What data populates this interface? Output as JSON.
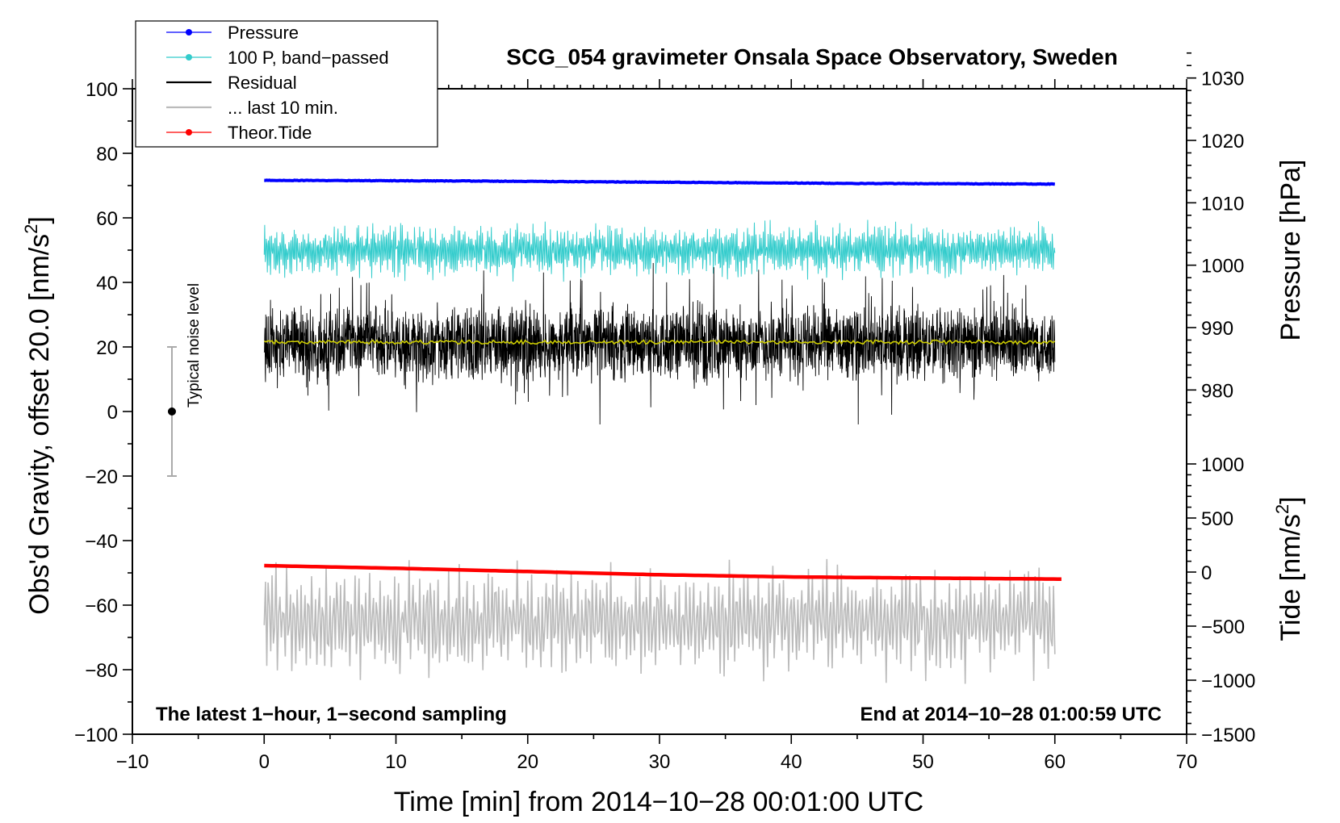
{
  "chart_data": {
    "type": "line",
    "title": "SCG_054 gravimeter Onsala Space Observatory, Sweden",
    "xlabel": "Time [min] from 2014−10−28 00:01:00 UTC",
    "ylabel": "Obs'd Gravity, offset 20.0 [nm/s",
    "ylabel_sup": "2",
    "ylabel_end": "]",
    "y2label": "Pressure [hPa]",
    "y3label": "Tide [nm/s",
    "y3label_sup": "2",
    "y3label_end": "]",
    "xlim": [
      -10,
      70
    ],
    "ylim": [
      -100,
      100
    ],
    "xticks": [
      -10,
      0,
      10,
      20,
      30,
      40,
      50,
      60,
      70
    ],
    "yticks": [
      -100,
      -80,
      -60,
      -40,
      -20,
      0,
      20,
      40,
      60,
      80,
      100
    ],
    "pressure_axis": {
      "range": [
        975,
        1035
      ],
      "ticks": [
        980,
        990,
        1000,
        1010,
        1020,
        1030
      ]
    },
    "tide_axis": {
      "range": [
        -1500,
        1000
      ],
      "ticks": [
        -1500,
        -1000,
        -500,
        0,
        500,
        1000
      ]
    },
    "xtick_labels": [
      "−10",
      "0",
      "10",
      "20",
      "30",
      "40",
      "50",
      "60",
      "70"
    ],
    "ytick_labels": [
      "−100",
      "−80",
      "−60",
      "−40",
      "−20",
      "0",
      "20",
      "40",
      "60",
      "80",
      "100"
    ],
    "pressure_tick_labels": [
      "980",
      "990",
      "1000",
      "1010",
      "1020",
      "1030"
    ],
    "tide_tick_labels": [
      "−1500",
      "−1000",
      "−500",
      "0",
      "500",
      "1000"
    ],
    "legend": {
      "placement": "top-left",
      "entries": [
        {
          "label": "Pressure",
          "color": "#0000ff",
          "marker": true
        },
        {
          "label": "100 P, band−passed",
          "color": "#33cccc",
          "marker": true
        },
        {
          "label": "Residual",
          "color": "#000000",
          "marker": false
        },
        {
          "label": "... last 10 min.",
          "color": "#bbbbbb",
          "marker": false
        },
        {
          "label": "Theor.Tide",
          "color": "#ff0000",
          "marker": true
        }
      ]
    },
    "annotations": {
      "bottom_left": "The latest 1−hour, 1−second sampling",
      "bottom_right": "End at 2014−10−28 01:00:59 UTC",
      "noise_label": "Typical noise level"
    },
    "noise_bar": {
      "x": -7,
      "center": 0,
      "low": -20,
      "high": 20
    },
    "series": [
      {
        "name": "Pressure",
        "axis": "pressure",
        "color": "#0000ff",
        "x": [
          0,
          15,
          30,
          45,
          60
        ],
        "values": [
          1013.6,
          1013.5,
          1013.3,
          1013.1,
          1013.0
        ]
      },
      {
        "name": "100 P, band-passed",
        "axis": "gravity",
        "color": "#33cccc",
        "x_range": [
          0,
          60
        ],
        "mean": 50,
        "amplitude": 6,
        "min": 38,
        "max": 65
      },
      {
        "name": "Residual",
        "axis": "gravity",
        "color": "#000000",
        "x_range": [
          0,
          60
        ],
        "mean": 21,
        "amplitude": 9,
        "min": -4,
        "max": 46
      },
      {
        "name": "Residual smoothed",
        "axis": "gravity",
        "color": "#cccc00",
        "x": [
          0,
          60
        ],
        "values": [
          21.5,
          21.5
        ]
      },
      {
        "name": "... last 10 min.",
        "axis": "gravity",
        "color": "#bbbbbb",
        "x_range": [
          0,
          60
        ],
        "mean": -65,
        "amplitude": 8,
        "min": -86,
        "max": -37
      },
      {
        "name": "Theor.Tide",
        "axis": "tide",
        "color": "#ff0000",
        "x": [
          0,
          10,
          20,
          30,
          40,
          50,
          60.5
        ],
        "values": [
          60,
          35,
          5,
          -25,
          -45,
          -55,
          -65
        ]
      }
    ]
  }
}
